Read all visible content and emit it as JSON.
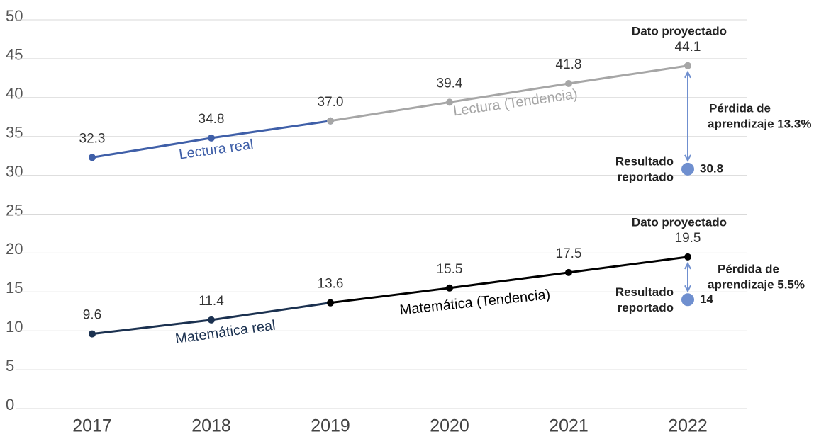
{
  "chart_data": {
    "type": "line",
    "categories": [
      "2017",
      "2018",
      "2019",
      "2020",
      "2021",
      "2022"
    ],
    "ylim": [
      0,
      50
    ],
    "yticks": [
      0,
      5,
      10,
      15,
      20,
      25,
      30,
      35,
      40,
      45,
      50
    ],
    "grid": true,
    "series": [
      {
        "name": "Lectura real",
        "color": "#3f5fa8",
        "values": [
          32.3,
          34.8,
          37.0,
          null,
          null,
          null
        ],
        "value_labels": [
          "32.3",
          "34.8",
          "37.0",
          null,
          null,
          null
        ]
      },
      {
        "name": "Lectura (Tendencia)",
        "color": "#a6a6a6",
        "values": [
          null,
          null,
          37.0,
          39.4,
          41.8,
          44.1
        ]
      },
      {
        "name": "Matemática real",
        "color": "#1b3150",
        "values": [
          9.6,
          11.4,
          13.6,
          null,
          null,
          null
        ]
      },
      {
        "name": "Matemática (Tendencia)",
        "color": "#000000",
        "values": [
          null,
          null,
          13.6,
          15.5,
          17.5,
          19.5
        ]
      }
    ],
    "annotations": [
      {
        "x": "2022",
        "projected": "Dato proyectado",
        "projected_value": 44.1,
        "loss": [
          "Pérdida de",
          "aprendizaje 13.3%"
        ],
        "reported_label": [
          "Resultado",
          "reportado"
        ],
        "reported_value": 30.8,
        "color": "#6f8fcf"
      },
      {
        "x": "2022",
        "projected": "Dato proyectado",
        "projected_value": 19.5,
        "loss": [
          "Pérdida de",
          "aprendizaje 5.5%"
        ],
        "reported_label": [
          "Resultado",
          "reportado"
        ],
        "reported_value": 14,
        "color": "#6f8fcf"
      }
    ]
  }
}
